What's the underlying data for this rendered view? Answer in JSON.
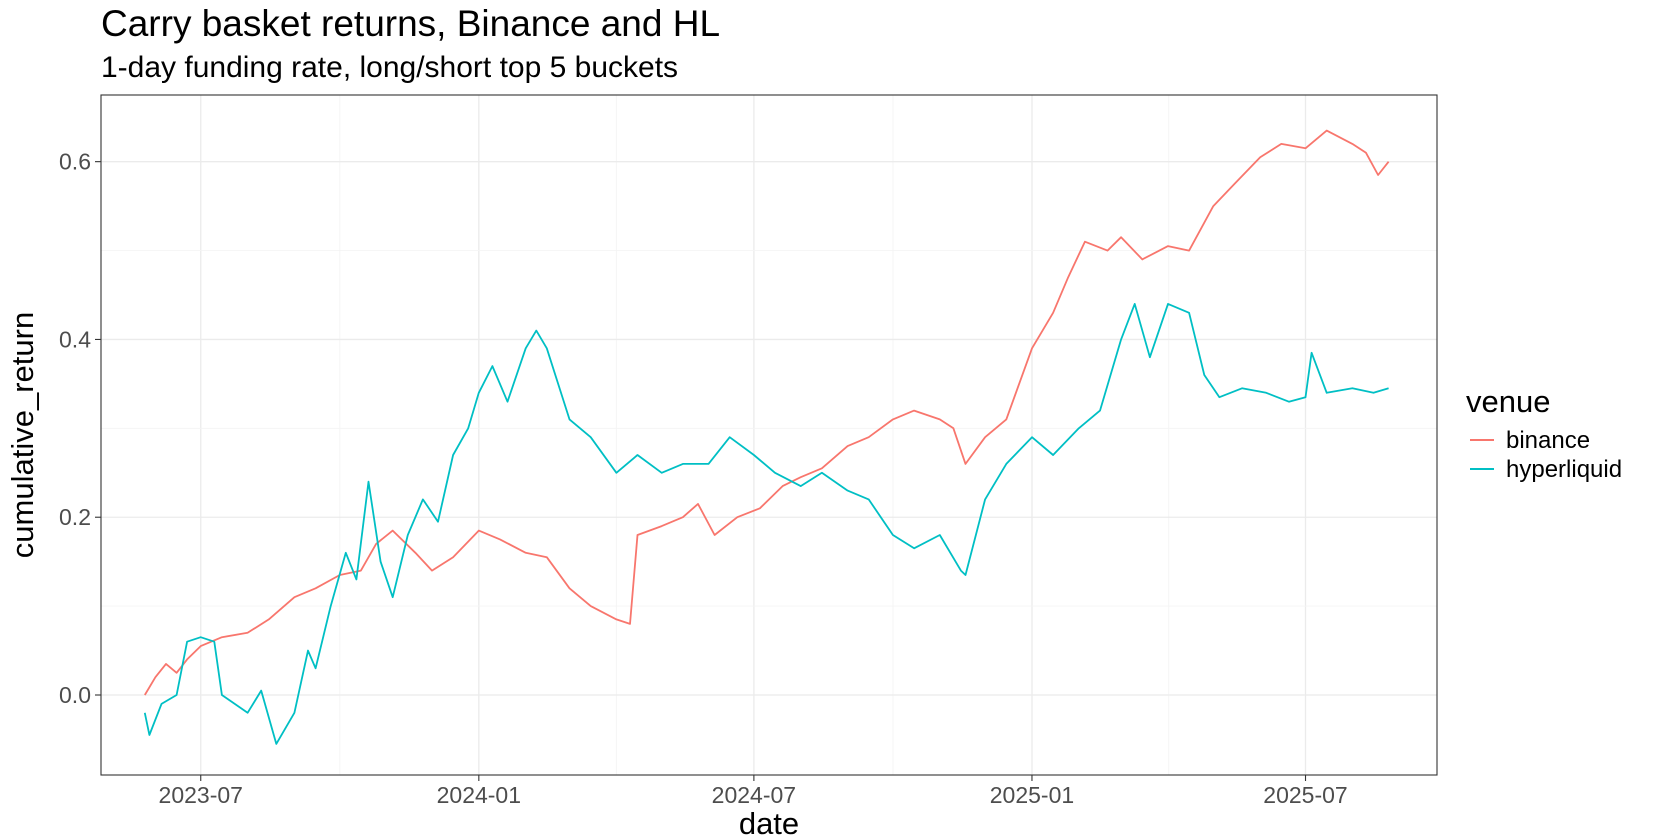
{
  "chart_data": {
    "type": "line",
    "title": "Carry basket returns, Binance and HL",
    "subtitle": "1-day funding rate, long/short top 5 buckets",
    "xlabel": "date",
    "ylabel": "cumulative_return",
    "x_ticks": [
      "2023-07",
      "2024-01",
      "2024-07",
      "2025-01",
      "2025-07"
    ],
    "y_ticks": [
      "0.0",
      "0.2",
      "0.4",
      "0.6"
    ],
    "ylim": [
      -0.09,
      0.675
    ],
    "xlim": [
      "2023-04-26",
      "2025-09-26"
    ],
    "grid": true,
    "legend": {
      "title": "venue",
      "position": "right"
    },
    "series": [
      {
        "name": "binance",
        "color": "#F8766D",
        "points": [
          [
            "2023-05-25",
            0.0
          ],
          [
            "2023-06-01",
            0.02
          ],
          [
            "2023-06-08",
            0.035
          ],
          [
            "2023-06-15",
            0.025
          ],
          [
            "2023-06-22",
            0.04
          ],
          [
            "2023-07-01",
            0.055
          ],
          [
            "2023-07-15",
            0.065
          ],
          [
            "2023-08-01",
            0.07
          ],
          [
            "2023-08-15",
            0.085
          ],
          [
            "2023-09-01",
            0.11
          ],
          [
            "2023-09-15",
            0.12
          ],
          [
            "2023-10-01",
            0.135
          ],
          [
            "2023-10-15",
            0.14
          ],
          [
            "2023-10-25",
            0.17
          ],
          [
            "2023-11-05",
            0.185
          ],
          [
            "2023-11-20",
            0.16
          ],
          [
            "2023-12-01",
            0.14
          ],
          [
            "2023-12-15",
            0.155
          ],
          [
            "2024-01-01",
            0.185
          ],
          [
            "2024-01-15",
            0.175
          ],
          [
            "2024-02-01",
            0.16
          ],
          [
            "2024-02-15",
            0.155
          ],
          [
            "2024-03-01",
            0.12
          ],
          [
            "2024-03-15",
            0.1
          ],
          [
            "2024-04-01",
            0.085
          ],
          [
            "2024-04-10",
            0.08
          ],
          [
            "2024-04-15",
            0.18
          ],
          [
            "2024-05-01",
            0.19
          ],
          [
            "2024-05-15",
            0.2
          ],
          [
            "2024-05-25",
            0.215
          ],
          [
            "2024-06-05",
            0.18
          ],
          [
            "2024-06-20",
            0.2
          ],
          [
            "2024-07-05",
            0.21
          ],
          [
            "2024-07-20",
            0.235
          ],
          [
            "2024-08-01",
            0.245
          ],
          [
            "2024-08-15",
            0.255
          ],
          [
            "2024-09-01",
            0.28
          ],
          [
            "2024-09-15",
            0.29
          ],
          [
            "2024-10-01",
            0.31
          ],
          [
            "2024-10-15",
            0.32
          ],
          [
            "2024-11-01",
            0.31
          ],
          [
            "2024-11-10",
            0.3
          ],
          [
            "2024-11-18",
            0.26
          ],
          [
            "2024-12-01",
            0.29
          ],
          [
            "2024-12-15",
            0.31
          ],
          [
            "2025-01-01",
            0.39
          ],
          [
            "2025-01-15",
            0.43
          ],
          [
            "2025-01-25",
            0.47
          ],
          [
            "2025-02-05",
            0.51
          ],
          [
            "2025-02-20",
            0.5
          ],
          [
            "2025-03-01",
            0.515
          ],
          [
            "2025-03-15",
            0.49
          ],
          [
            "2025-04-01",
            0.505
          ],
          [
            "2025-04-15",
            0.5
          ],
          [
            "2025-05-01",
            0.55
          ],
          [
            "2025-05-15",
            0.575
          ],
          [
            "2025-06-01",
            0.605
          ],
          [
            "2025-06-15",
            0.62
          ],
          [
            "2025-07-01",
            0.615
          ],
          [
            "2025-07-15",
            0.635
          ],
          [
            "2025-08-01",
            0.62
          ],
          [
            "2025-08-10",
            0.61
          ],
          [
            "2025-08-18",
            0.585
          ],
          [
            "2025-08-25",
            0.6
          ]
        ]
      },
      {
        "name": "hyperliquid",
        "color": "#00BFC4",
        "points": [
          [
            "2023-05-25",
            -0.02
          ],
          [
            "2023-05-28",
            -0.045
          ],
          [
            "2023-06-05",
            -0.01
          ],
          [
            "2023-06-15",
            0.0
          ],
          [
            "2023-06-22",
            0.06
          ],
          [
            "2023-07-01",
            0.065
          ],
          [
            "2023-07-10",
            0.06
          ],
          [
            "2023-07-15",
            0.0
          ],
          [
            "2023-08-01",
            -0.02
          ],
          [
            "2023-08-10",
            0.005
          ],
          [
            "2023-08-20",
            -0.055
          ],
          [
            "2023-09-01",
            -0.02
          ],
          [
            "2023-09-10",
            0.05
          ],
          [
            "2023-09-15",
            0.03
          ],
          [
            "2023-09-25",
            0.1
          ],
          [
            "2023-10-05",
            0.16
          ],
          [
            "2023-10-12",
            0.13
          ],
          [
            "2023-10-20",
            0.24
          ],
          [
            "2023-10-28",
            0.15
          ],
          [
            "2023-11-05",
            0.11
          ],
          [
            "2023-11-15",
            0.18
          ],
          [
            "2023-11-25",
            0.22
          ],
          [
            "2023-12-05",
            0.195
          ],
          [
            "2023-12-15",
            0.27
          ],
          [
            "2023-12-25",
            0.3
          ],
          [
            "2024-01-01",
            0.34
          ],
          [
            "2024-01-10",
            0.37
          ],
          [
            "2024-01-20",
            0.33
          ],
          [
            "2024-02-01",
            0.39
          ],
          [
            "2024-02-08",
            0.41
          ],
          [
            "2024-02-15",
            0.39
          ],
          [
            "2024-03-01",
            0.31
          ],
          [
            "2024-03-15",
            0.29
          ],
          [
            "2024-04-01",
            0.25
          ],
          [
            "2024-04-15",
            0.27
          ],
          [
            "2024-05-01",
            0.25
          ],
          [
            "2024-05-15",
            0.26
          ],
          [
            "2024-06-01",
            0.26
          ],
          [
            "2024-06-15",
            0.29
          ],
          [
            "2024-07-01",
            0.27
          ],
          [
            "2024-07-15",
            0.25
          ],
          [
            "2024-08-01",
            0.235
          ],
          [
            "2024-08-15",
            0.25
          ],
          [
            "2024-09-01",
            0.23
          ],
          [
            "2024-09-15",
            0.22
          ],
          [
            "2024-10-01",
            0.18
          ],
          [
            "2024-10-15",
            0.165
          ],
          [
            "2024-11-01",
            0.18
          ],
          [
            "2024-11-15",
            0.14
          ],
          [
            "2024-11-18",
            0.135
          ],
          [
            "2024-12-01",
            0.22
          ],
          [
            "2024-12-15",
            0.26
          ],
          [
            "2025-01-01",
            0.29
          ],
          [
            "2025-01-15",
            0.27
          ],
          [
            "2025-02-01",
            0.3
          ],
          [
            "2025-02-15",
            0.32
          ],
          [
            "2025-03-01",
            0.4
          ],
          [
            "2025-03-10",
            0.44
          ],
          [
            "2025-03-20",
            0.38
          ],
          [
            "2025-04-01",
            0.44
          ],
          [
            "2025-04-15",
            0.43
          ],
          [
            "2025-04-25",
            0.36
          ],
          [
            "2025-05-05",
            0.335
          ],
          [
            "2025-05-20",
            0.345
          ],
          [
            "2025-06-05",
            0.34
          ],
          [
            "2025-06-20",
            0.33
          ],
          [
            "2025-07-01",
            0.335
          ],
          [
            "2025-07-05",
            0.385
          ],
          [
            "2025-07-15",
            0.34
          ],
          [
            "2025-08-01",
            0.345
          ],
          [
            "2025-08-15",
            0.34
          ],
          [
            "2025-08-25",
            0.345
          ]
        ]
      }
    ]
  }
}
